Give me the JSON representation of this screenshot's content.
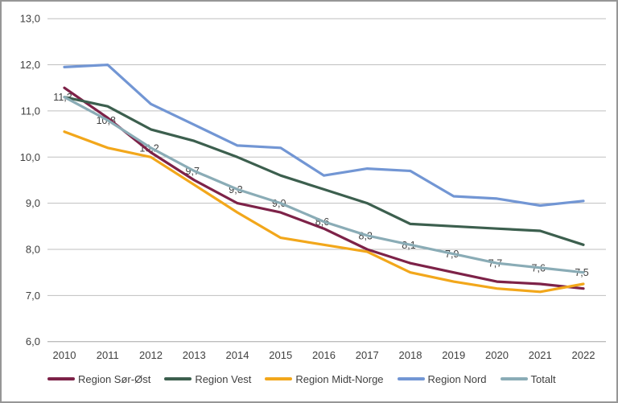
{
  "chart_data": {
    "type": "line",
    "title": "",
    "xlabel": "",
    "ylabel": "",
    "categories": [
      "2010",
      "2011",
      "2012",
      "2013",
      "2014",
      "2015",
      "2016",
      "2017",
      "2018",
      "2019",
      "2020",
      "2021",
      "2022"
    ],
    "series": [
      {
        "name": "Region Sør-Øst",
        "color": "#7D2248",
        "values": [
          11.5,
          10.85,
          10.1,
          9.5,
          9.0,
          8.8,
          8.45,
          8.0,
          7.7,
          7.5,
          7.3,
          7.25,
          7.15
        ]
      },
      {
        "name": "Region Vest",
        "color": "#3C5F4E",
        "values": [
          11.3,
          11.1,
          10.6,
          10.35,
          10.0,
          9.6,
          9.3,
          9.0,
          8.55,
          8.5,
          8.45,
          8.4,
          8.1
        ]
      },
      {
        "name": "Region Midt-Norge",
        "color": "#F2A71B",
        "values": [
          10.55,
          10.2,
          10.0,
          9.4,
          8.8,
          8.25,
          8.1,
          7.95,
          7.5,
          7.3,
          7.15,
          7.08,
          7.25
        ]
      },
      {
        "name": "Region Nord",
        "color": "#7296D4",
        "values": [
          11.95,
          12.0,
          11.15,
          10.7,
          10.25,
          10.2,
          9.6,
          9.75,
          9.7,
          9.15,
          9.1,
          8.95,
          9.05
        ]
      },
      {
        "name": "Totalt",
        "color": "#8AACB6",
        "values": [
          11.3,
          10.8,
          10.2,
          9.7,
          9.3,
          9.0,
          8.6,
          8.3,
          8.1,
          7.9,
          7.7,
          7.6,
          7.5
        ],
        "data_labels": [
          "11,3",
          "10,8",
          "10,2",
          "9,7",
          "9,3",
          "9,0",
          "8,6",
          "8,3",
          "8,1",
          "7,9",
          "7,7",
          "7,6",
          "7,5"
        ]
      }
    ],
    "ylim": [
      6.0,
      13.0
    ],
    "y_tick_step": 1.0,
    "y_ticks": [
      "6,0",
      "7,0",
      "8,0",
      "9,0",
      "10,0",
      "11,0",
      "12,0",
      "13,0"
    ],
    "grid": "horizontal",
    "legend_position": "bottom",
    "decimal_separator": ","
  },
  "colors": {
    "background": "#FFFFFF",
    "border": "#969696",
    "gridline": "#BFBFBF",
    "axis_line": "#A6A6A6",
    "axis_text": "#3F3F3F"
  }
}
